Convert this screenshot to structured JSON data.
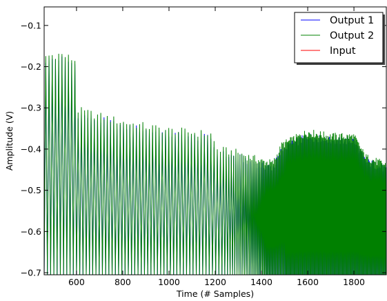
{
  "chart_data": {
    "type": "line",
    "title": "",
    "xlabel": "Time (# Samples)",
    "ylabel": "Amplitude (V)",
    "xlim": [
      460,
      1940
    ],
    "ylim": [
      -0.705,
      -0.055
    ],
    "xticks": [
      600,
      800,
      1000,
      1200,
      1400,
      1600,
      1800
    ],
    "yticks": [
      -0.1,
      -0.2,
      -0.3,
      -0.4,
      -0.5,
      -0.6,
      -0.7
    ],
    "xtick_labels": [
      "600",
      "800",
      "1000",
      "1200",
      "1400",
      "1600",
      "1800"
    ],
    "ytick_labels": [
      "−0.1",
      "−0.2",
      "−0.3",
      "−0.4",
      "−0.5",
      "−0.6",
      "−0.7"
    ],
    "grid": false,
    "legend_position": "top-right",
    "signal": {
      "baseline": -0.705,
      "peak_envelope": [
        {
          "x": 460,
          "y": -0.175
        },
        {
          "x": 530,
          "y": -0.17
        },
        {
          "x": 595,
          "y": -0.185
        },
        {
          "x": 600,
          "y": -0.305
        },
        {
          "x": 700,
          "y": -0.32
        },
        {
          "x": 800,
          "y": -0.335
        },
        {
          "x": 900,
          "y": -0.345
        },
        {
          "x": 1000,
          "y": -0.355
        },
        {
          "x": 1100,
          "y": -0.36
        },
        {
          "x": 1190,
          "y": -0.365
        },
        {
          "x": 1200,
          "y": -0.4
        },
        {
          "x": 1300,
          "y": -0.41
        },
        {
          "x": 1400,
          "y": -0.43
        },
        {
          "x": 1450,
          "y": -0.435
        },
        {
          "x": 1490,
          "y": -0.39
        },
        {
          "x": 1600,
          "y": -0.36
        },
        {
          "x": 1700,
          "y": -0.37
        },
        {
          "x": 1800,
          "y": -0.37
        },
        {
          "x": 1850,
          "y": -0.42
        },
        {
          "x": 1940,
          "y": -0.44
        }
      ]
    },
    "series": [
      {
        "name": "Output 1",
        "color": "#0000ff"
      },
      {
        "name": "Output 2",
        "color": "#008000"
      },
      {
        "name": "Input",
        "color": "#ff0000"
      }
    ]
  }
}
